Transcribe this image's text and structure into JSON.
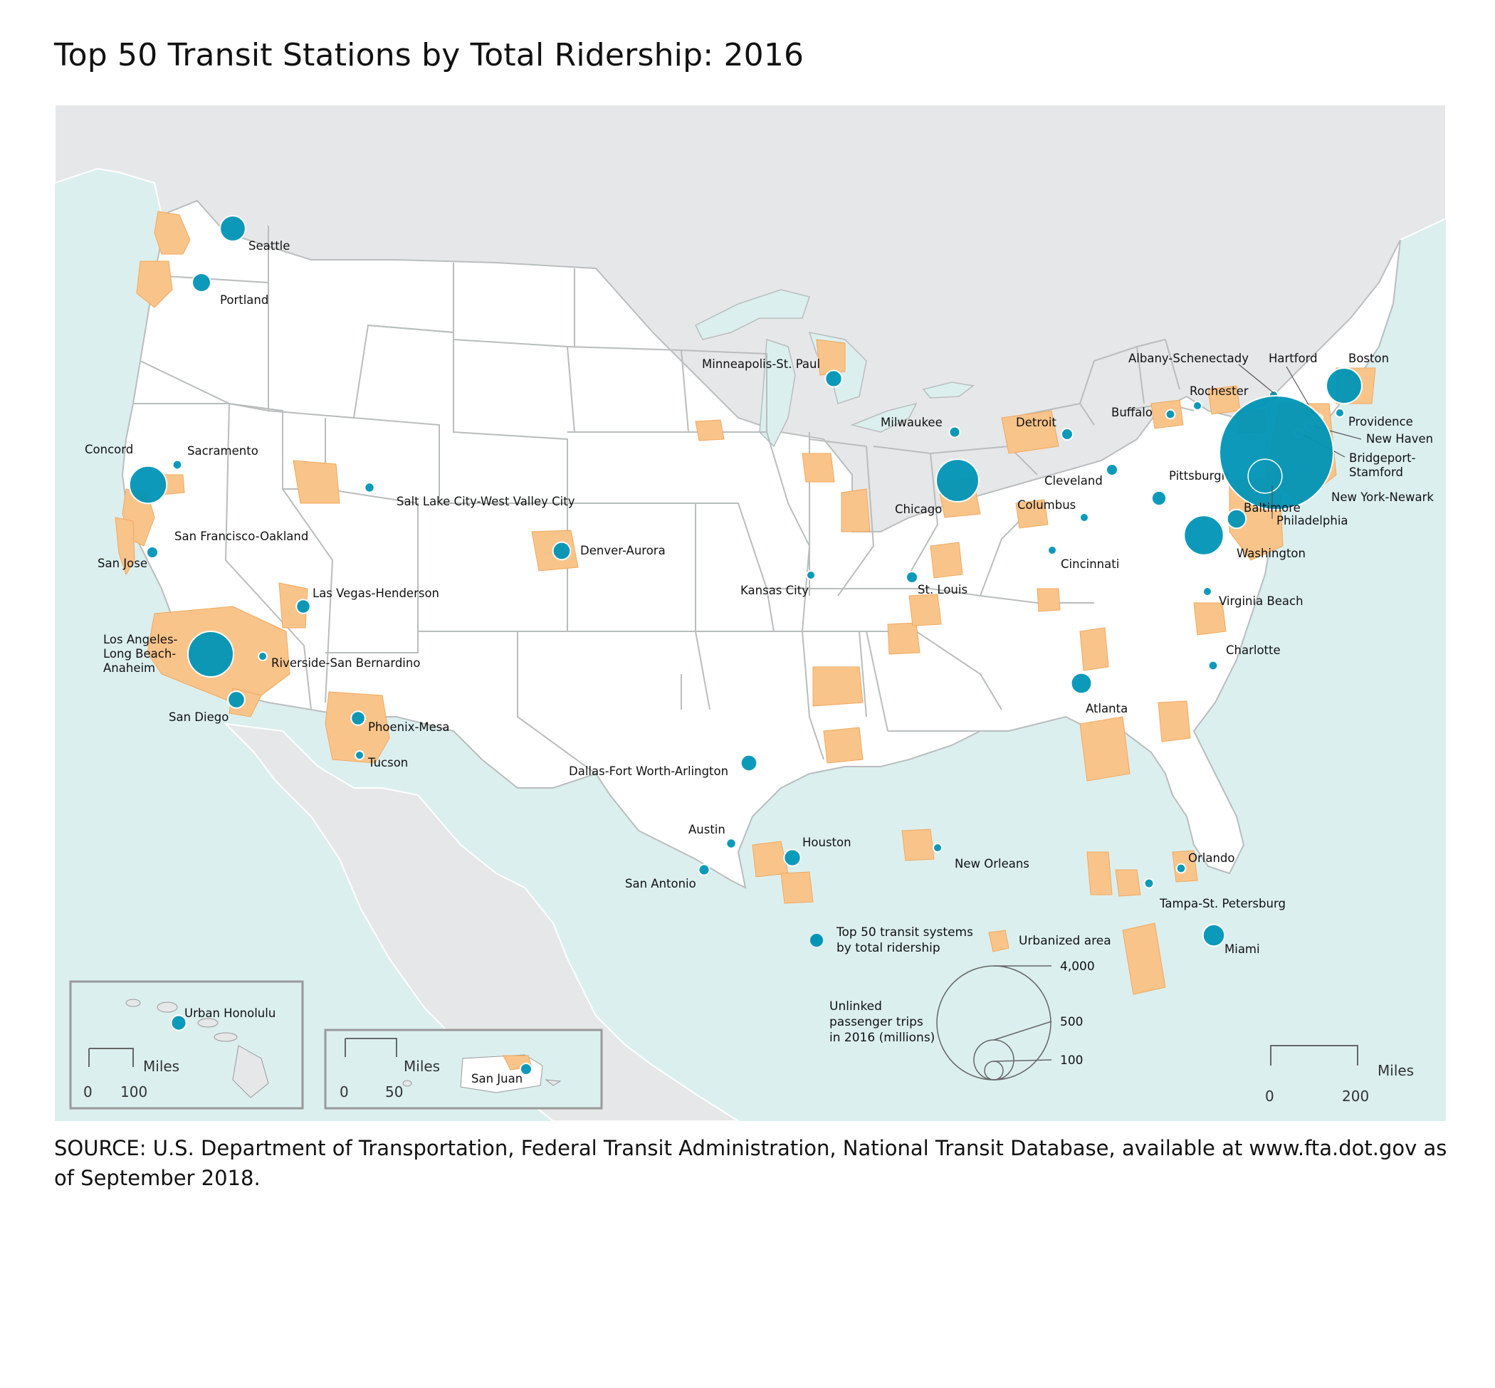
{
  "title": "Top 50 Transit Stations by Total Ridership: 2016",
  "source": "SOURCE: U.S. Department of Transportation, Federal Transit Administration, National Transit Database, available at www.fta.dot.gov as of September 2018.",
  "colors": {
    "ocean": "#dcefef",
    "foreign_land": "#e6e7e8",
    "us_land": "#ffffff",
    "state_border": "#b9bdbd",
    "urban_area": "#f9c48a",
    "bubble": "#0095b6",
    "bubble_stroke": "#ffffff"
  },
  "legend": {
    "systems_label_1": "Top 50 transit systems",
    "systems_label_2": "by total ridership",
    "urban_label": "Urbanized area",
    "size_title_1": "Unlinked",
    "size_title_2": "passenger trips",
    "size_title_3": "in 2016 (millions)",
    "size_values": [
      "4,000",
      "500",
      "100"
    ]
  },
  "scale_bars": {
    "main": {
      "unit": "Miles",
      "start": "0",
      "end": "200"
    },
    "hawaii": {
      "unit": "Miles",
      "start": "0",
      "end": "100"
    },
    "puerto_rico": {
      "unit": "Miles",
      "start": "0",
      "end": "50"
    }
  },
  "insets": {
    "hawaii_label": "Urban Honolulu",
    "puerto_rico_label": "San Juan"
  },
  "cities": [
    {
      "label": [
        "Seattle"
      ],
      "value": 200
    },
    {
      "label": [
        "Portland"
      ],
      "value": 105
    },
    {
      "label": [
        "Concord"
      ],
      "value": 20
    },
    {
      "label": [
        "Sacramento"
      ],
      "value": 25
    },
    {
      "label": [
        "San Francisco-Oakland"
      ],
      "value": 430
    },
    {
      "label": [
        "San Jose"
      ],
      "value": 40
    },
    {
      "label": [
        "Salt Lake City-West Valley City"
      ],
      "value": 28
    },
    {
      "label": [
        "Las Vegas-Henderson"
      ],
      "value": 60
    },
    {
      "label": [
        "Los Angeles-",
        "Long Beach-",
        "Anaheim"
      ],
      "value": 640
    },
    {
      "label": [
        "Riverside-San Bernardino"
      ],
      "value": 15
    },
    {
      "label": [
        "San Diego"
      ],
      "value": 88
    },
    {
      "label": [
        "Phoenix-Mesa"
      ],
      "value": 60
    },
    {
      "label": [
        "Tucson"
      ],
      "value": 14
    },
    {
      "label": [
        "Denver-Aurora"
      ],
      "value": 95
    },
    {
      "label": [
        "Minneapolis-St. Paul"
      ],
      "value": 85
    },
    {
      "label": [
        "Kansas City"
      ],
      "value": 15
    },
    {
      "label": [
        "Dallas-Fort Worth-Arlington"
      ],
      "value": 80
    },
    {
      "label": [
        "Austin"
      ],
      "value": 28
    },
    {
      "label": [
        "San Antonio"
      ],
      "value": 36
    },
    {
      "label": [
        "Houston"
      ],
      "value": 85
    },
    {
      "label": [
        "New Orleans"
      ],
      "value": 18
    },
    {
      "label": [
        "Milwaukee"
      ],
      "value": 35
    },
    {
      "label": [
        "Chicago"
      ],
      "value": 560
    },
    {
      "label": [
        "St. Louis"
      ],
      "value": 40
    },
    {
      "label": [
        "Detroit"
      ],
      "value": 40
    },
    {
      "label": [
        "Cleveland"
      ],
      "value": 40
    },
    {
      "label": [
        "Columbus"
      ],
      "value": 17
    },
    {
      "label": [
        "Cincinnati"
      ],
      "value": 16
    },
    {
      "label": [
        "Pittsburgh"
      ],
      "value": 64
    },
    {
      "label": [
        "Buffalo"
      ],
      "value": 25
    },
    {
      "label": [
        "Rochester"
      ],
      "value": 16
    },
    {
      "label": [
        "Albany-Schenectady"
      ],
      "value": 15
    },
    {
      "label": [
        "Boston"
      ],
      "value": 390
    },
    {
      "label": [
        "Hartford"
      ],
      "value": 25
    },
    {
      "label": [
        "Providence"
      ],
      "value": 20
    },
    {
      "label": [
        "New Haven"
      ],
      "value": 15
    },
    {
      "label": [
        "Bridgeport-",
        "Stamford"
      ],
      "value": 18
    },
    {
      "label": [
        "New York-Newark"
      ],
      "value": 4000
    },
    {
      "label": [
        "Philadelphia"
      ],
      "value": 355
    },
    {
      "label": [
        "Baltimore"
      ],
      "value": 110
    },
    {
      "label": [
        "Washington"
      ],
      "value": 480
    },
    {
      "label": [
        "Virginia Beach"
      ],
      "value": 14
    },
    {
      "label": [
        "Charlotte"
      ],
      "value": 25
    },
    {
      "label": [
        "Atlanta"
      ],
      "value": 130
    },
    {
      "label": [
        "Orlando"
      ],
      "value": 25
    },
    {
      "label": [
        "Tampa-St. Petersburg"
      ],
      "value": 26
    },
    {
      "label": [
        "Miami"
      ],
      "value": 145
    },
    {
      "label": [
        "Urban Honolulu"
      ],
      "value": 70
    },
    {
      "label": [
        "San Juan"
      ],
      "value": 40
    }
  ]
}
